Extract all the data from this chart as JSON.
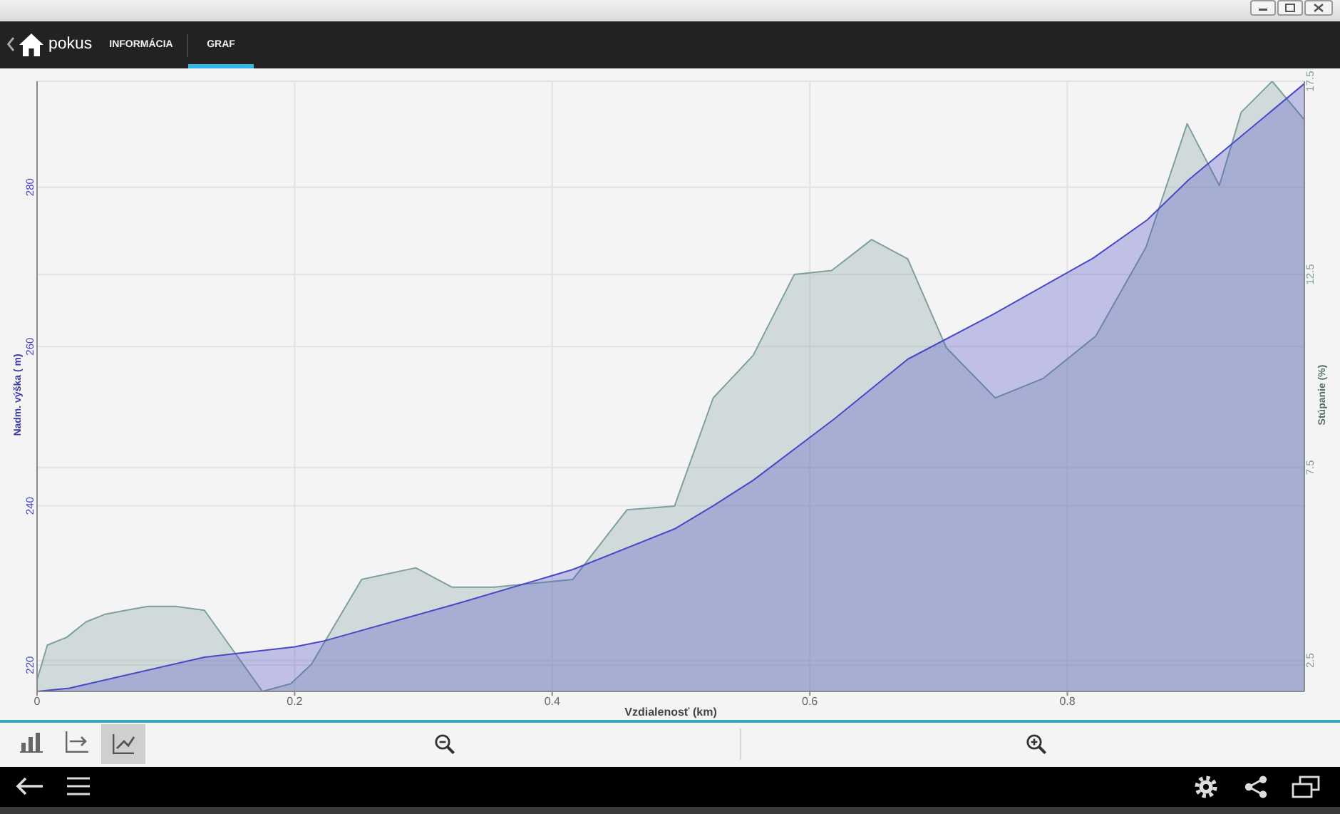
{
  "chart_data": {
    "type": "area",
    "title": "pokus",
    "annotations": [
      "INFORMÁCIA",
      "GRAF"
    ],
    "xlabel": "Vzdialenosť (km)",
    "ylabel": "Nadm. výška ( m)",
    "y2label": "Stúpanie (%)",
    "xlim": [
      0,
      0.984
    ],
    "xticks": [
      0,
      0.2,
      0.4,
      0.6,
      0.8
    ],
    "ylim": [
      216.7,
      293.3
    ],
    "yticks": [
      220,
      240,
      260,
      280
    ],
    "y2lim": [
      1.7,
      17.5
    ],
    "y2ticks": [
      2.5,
      7.5,
      12.5,
      17.5
    ],
    "grid": true,
    "series": [
      {
        "color": "#7f9f9f",
        "axis": "y2",
        "x": [
          0,
          0.008,
          0.023,
          0.038,
          0.053,
          0.069,
          0.086,
          0.108,
          0.13,
          0.175,
          0.197,
          0.213,
          0.252,
          0.294,
          0.322,
          0.355,
          0.416,
          0.458,
          0.495,
          0.525,
          0.556,
          0.588,
          0.617,
          0.648,
          0.676,
          0.706,
          0.744,
          0.781,
          0.822,
          0.861,
          0.893,
          0.918,
          0.935,
          0.959,
          0.984
        ],
        "values": [
          2.0,
          2.9,
          3.1,
          3.5,
          3.7,
          3.8,
          3.9,
          3.9,
          3.8,
          1.7,
          1.9,
          2.4,
          4.6,
          4.9,
          4.4,
          4.4,
          4.6,
          6.4,
          6.5,
          9.3,
          10.4,
          12.5,
          12.6,
          13.4,
          12.9,
          10.6,
          9.3,
          9.8,
          10.9,
          13.2,
          16.4,
          14.8,
          16.7,
          17.5,
          16.5
        ]
      },
      {
        "color": "#4848c8",
        "axis": "y",
        "x": [
          0,
          0.025,
          0.13,
          0.2,
          0.222,
          0.326,
          0.416,
          0.495,
          0.525,
          0.556,
          0.619,
          0.676,
          0.742,
          0.82,
          0.862,
          0.894,
          0.984
        ],
        "values": [
          216.7,
          217.1,
          221.0,
          222.3,
          223.0,
          227.7,
          232.0,
          237.1,
          240.0,
          243.2,
          250.9,
          258.4,
          264.0,
          271.1,
          275.9,
          280.9,
          293.0
        ]
      }
    ]
  }
}
